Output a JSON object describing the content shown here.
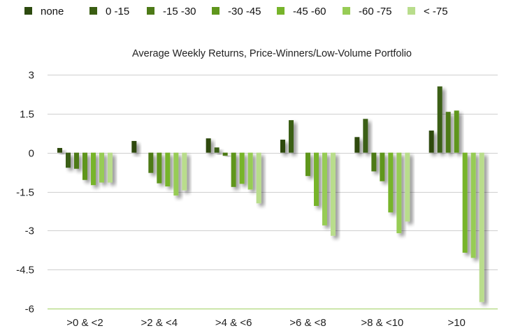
{
  "chart_data": {
    "type": "bar",
    "title": "Average Weekly Returns, Price-Winners/Low-Volume Portfolio",
    "xlabel": "",
    "ylabel": "",
    "ylim": [
      -6,
      3
    ],
    "yticks": [
      "3",
      "1.5",
      "0",
      "-1.5",
      "-3",
      "-4.5",
      "-6"
    ],
    "ytick_values": [
      3,
      1.5,
      0,
      -1.5,
      -3,
      -4.5,
      -6
    ],
    "grid": true,
    "legend_position": "top",
    "categories": [
      ">0 & <2",
      ">2 & <4",
      ">4 & <6",
      ">6 & <8",
      ">8 & <10",
      ">10"
    ],
    "series": [
      {
        "name": "none",
        "color": "#2d4a0f",
        "values": [
          0.18,
          0.45,
          0.55,
          0.5,
          0.6,
          0.85
        ]
      },
      {
        "name": "0 -15",
        "color": "#3a5e12",
        "values": [
          -0.58,
          0.0,
          0.2,
          1.25,
          1.3,
          2.55
        ]
      },
      {
        "name": "-15 -30",
        "color": "#4d7a17",
        "values": [
          -0.62,
          -0.78,
          -0.12,
          0.0,
          -0.72,
          1.57
        ]
      },
      {
        "name": "-30 -45",
        "color": "#5f961c",
        "values": [
          -1.05,
          -1.18,
          -1.32,
          -0.9,
          -1.1,
          1.62
        ]
      },
      {
        "name": "-45 -60",
        "color": "#77b42a",
        "values": [
          -1.25,
          -1.3,
          -1.2,
          -2.05,
          -2.3,
          -3.85
        ]
      },
      {
        "name": "-60 -75",
        "color": "#97cc55",
        "values": [
          -1.15,
          -1.65,
          -1.42,
          -2.8,
          -3.1,
          -4.05
        ]
      },
      {
        "name": "< -75",
        "color": "#b9dd8c",
        "values": [
          -1.15,
          -1.45,
          -1.95,
          -3.2,
          -2.65,
          -5.75
        ]
      }
    ]
  }
}
